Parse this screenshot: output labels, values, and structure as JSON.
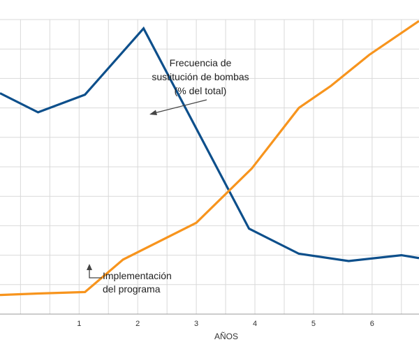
{
  "chart_data": {
    "type": "line",
    "title": "",
    "xlabel": "AÑOS",
    "ylabel": "",
    "xlim": [
      -0.35,
      6.8
    ],
    "ylim": [
      0,
      10
    ],
    "grid": true,
    "x_ticks": [
      1,
      2,
      3,
      4,
      5,
      6
    ],
    "series": [
      {
        "color": "#0d4f8b",
        "points": [
          [
            -0.35,
            7.5
          ],
          [
            0.3,
            6.85
          ],
          [
            1.1,
            7.45
          ],
          [
            2.1,
            9.7
          ],
          [
            3.9,
            2.9
          ],
          [
            4.75,
            2.05
          ],
          [
            5.6,
            1.8
          ],
          [
            6.5,
            2.0
          ],
          [
            6.8,
            1.9
          ]
        ]
      },
      {
        "color": "#f7941d",
        "points": [
          [
            -0.35,
            0.65
          ],
          [
            0.3,
            0.7
          ],
          [
            1.1,
            0.75
          ],
          [
            1.75,
            1.85
          ],
          [
            3.0,
            3.1
          ],
          [
            3.95,
            4.95
          ],
          [
            4.75,
            7.0
          ],
          [
            5.3,
            7.75
          ],
          [
            5.95,
            8.8
          ],
          [
            6.8,
            9.95
          ]
        ]
      }
    ],
    "annotations": {
      "frecuencia": {
        "lines": [
          "Frecuencia de",
          "sustitución de bombas",
          "(% del total)"
        ]
      },
      "implementacion": {
        "lines": [
          "Implementación",
          "del programa"
        ]
      }
    }
  }
}
